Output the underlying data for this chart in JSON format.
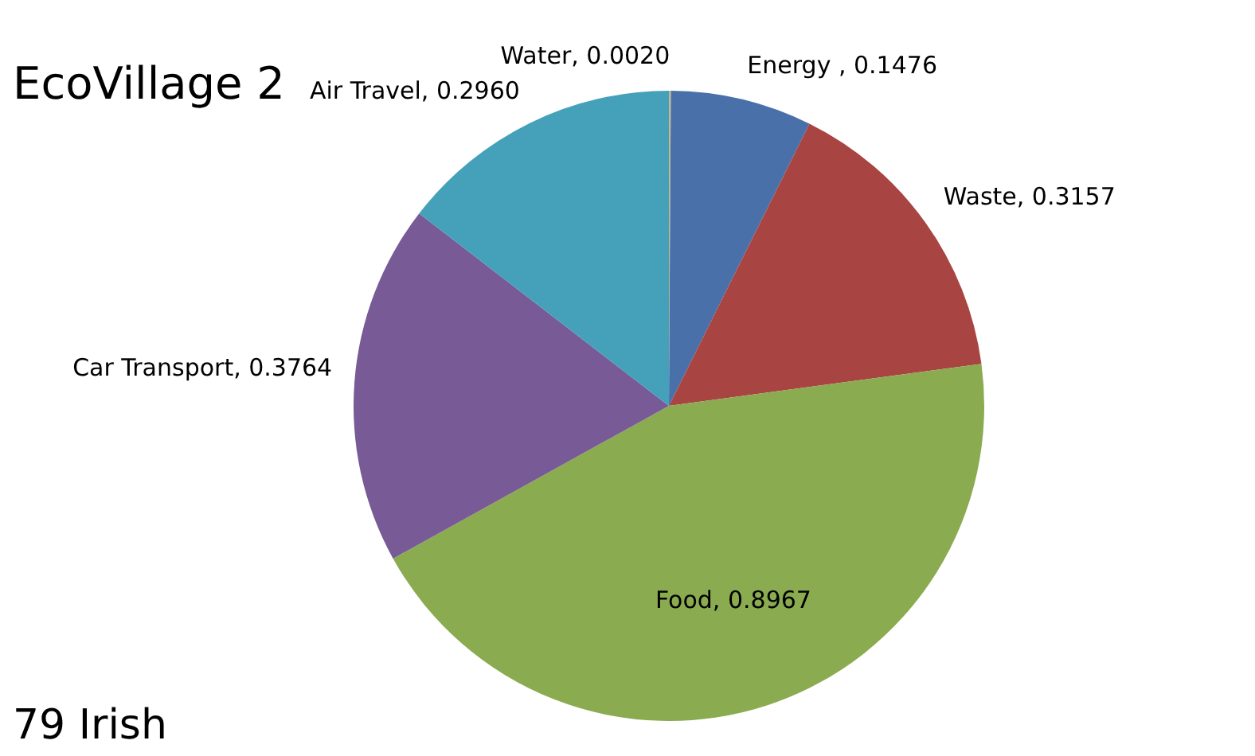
{
  "chart_data": {
    "type": "pie",
    "title": "EcoVillage 2",
    "categories": [
      "Water",
      "Energy ",
      "Waste",
      "Food",
      "Car Transport",
      "Air Travel"
    ],
    "values": [
      0.002,
      0.1476,
      0.3157,
      0.8967,
      0.3764,
      0.296
    ],
    "value_labels": [
      "0.0020",
      "0.1476",
      "0.3157",
      "0.8967",
      "0.3764",
      "0.2960"
    ],
    "colors": [
      "#c8b88a",
      "#4a70aa",
      "#a84442",
      "#8aab50",
      "#775a96",
      "#45a0ba"
    ],
    "annotations": [
      "79 Irish"
    ]
  }
}
